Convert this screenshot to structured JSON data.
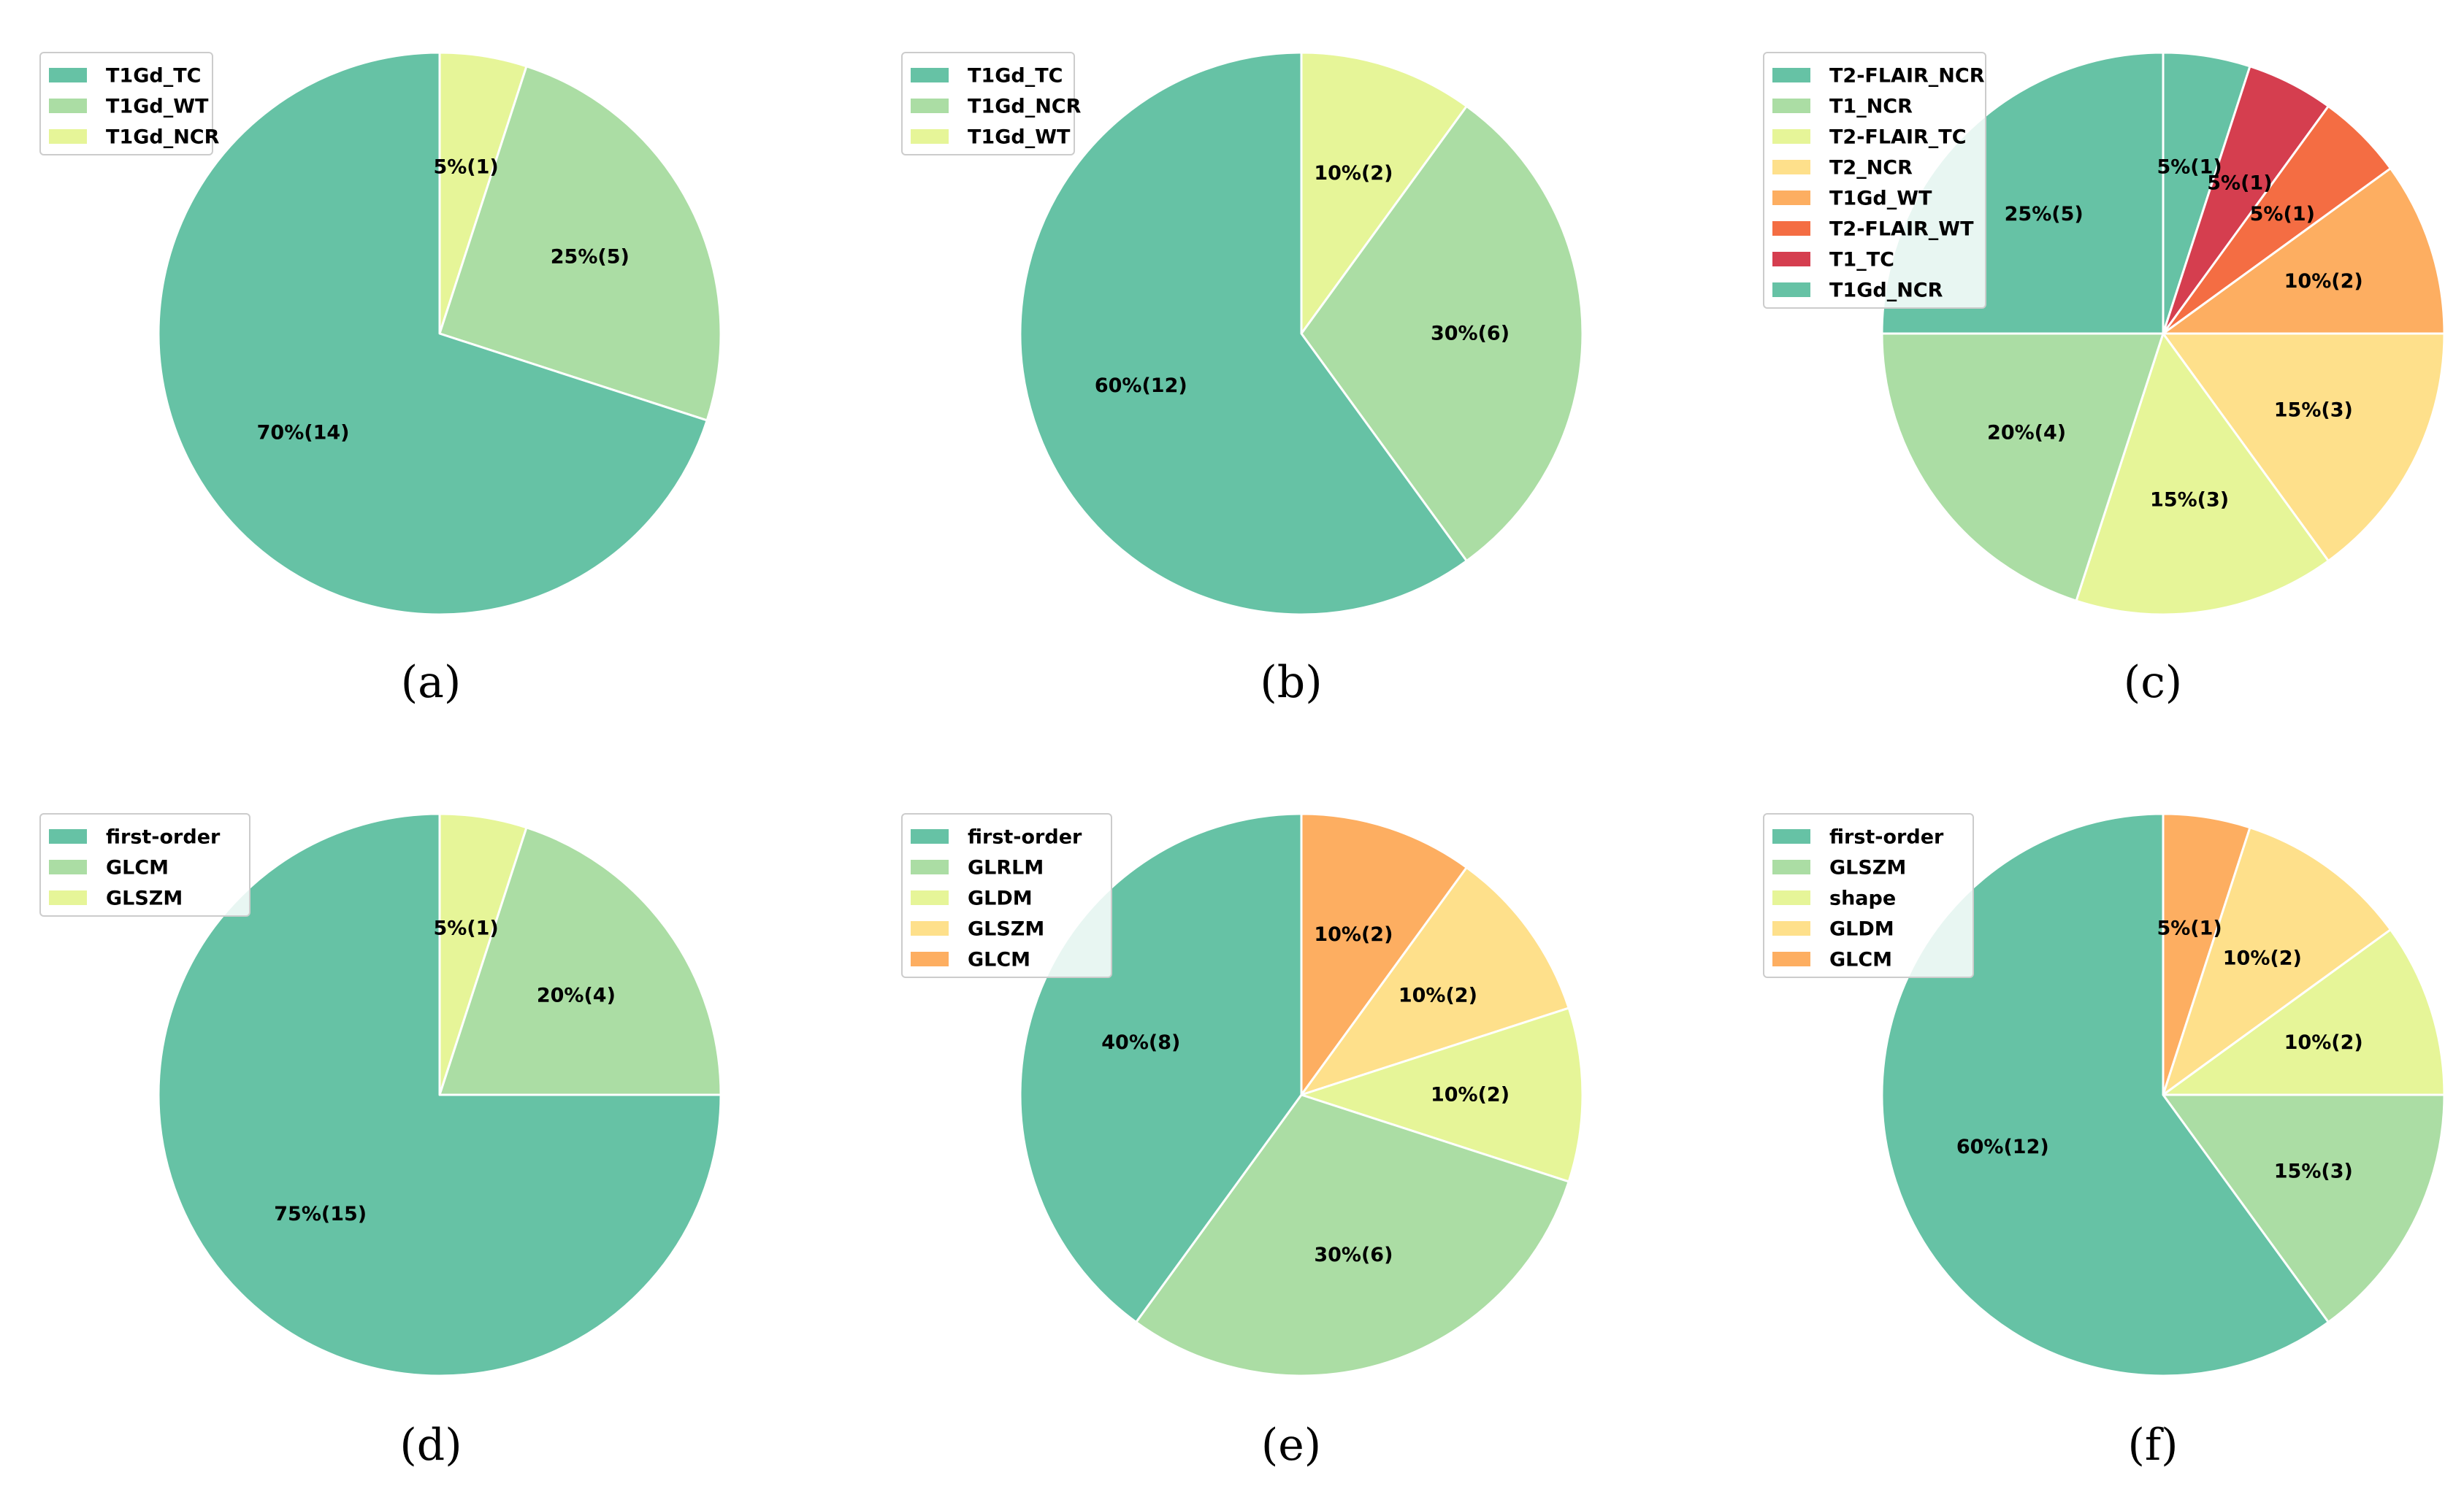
{
  "figure": {
    "background": "#ffffff"
  },
  "chart_data": [
    {
      "type": "pie",
      "caption": "(a)",
      "categories": [
        "T1Gd_NCR",
        "T1Gd_WT",
        "T1Gd_TC"
      ],
      "values": [
        5,
        25,
        70
      ],
      "counts": [
        1,
        5,
        14
      ],
      "labels": [
        "5%(1)",
        "25%(5)",
        "70%(14)"
      ],
      "colors": [
        "#e6f598",
        "#abdda4",
        "#66c2a5"
      ],
      "legend": [
        {
          "label": "T1Gd_TC",
          "color": "#66c2a5"
        },
        {
          "label": "T1Gd_WT",
          "color": "#abdda4"
        },
        {
          "label": "T1Gd_NCR",
          "color": "#e6f598"
        }
      ],
      "start_angle_deg": 90,
      "direction": "clockwise",
      "legend_position": "top-left"
    },
    {
      "type": "pie",
      "caption": "(b)",
      "categories": [
        "T1Gd_WT",
        "T1Gd_NCR",
        "T1Gd_TC"
      ],
      "values": [
        10,
        30,
        60
      ],
      "counts": [
        2,
        6,
        12
      ],
      "labels": [
        "10%(2)",
        "30%(6)",
        "60%(12)"
      ],
      "colors": [
        "#e6f598",
        "#abdda4",
        "#66c2a5"
      ],
      "legend": [
        {
          "label": "T1Gd_TC",
          "color": "#66c2a5"
        },
        {
          "label": "T1Gd_NCR",
          "color": "#abdda4"
        },
        {
          "label": "T1Gd_WT",
          "color": "#e6f598"
        }
      ],
      "start_angle_deg": 90,
      "direction": "clockwise",
      "legend_position": "top-left"
    },
    {
      "type": "pie",
      "caption": "(c)",
      "categories": [
        "T1Gd_NCR",
        "T1_TC",
        "T2-FLAIR_WT",
        "T1Gd_WT",
        "T2_NCR",
        "T2-FLAIR_TC",
        "T1_NCR",
        "T2-FLAIR_NCR"
      ],
      "values": [
        5,
        5,
        5,
        10,
        15,
        15,
        20,
        25
      ],
      "counts": [
        1,
        1,
        1,
        2,
        3,
        3,
        4,
        5
      ],
      "labels": [
        "5%(1)",
        "5%(1)",
        "5%(1)",
        "10%(2)",
        "15%(3)",
        "15%(3)",
        "20%(4)",
        "25%(5)"
      ],
      "colors": [
        "#66c2a5",
        "#d53e4f",
        "#f46d43",
        "#fdae61",
        "#fee08b",
        "#e6f598",
        "#abdda4",
        "#66c2a5"
      ],
      "legend": [
        {
          "label": "T2-FLAIR_NCR",
          "color": "#66c2a5"
        },
        {
          "label": "T1_NCR",
          "color": "#abdda4"
        },
        {
          "label": "T2-FLAIR_TC",
          "color": "#e6f598"
        },
        {
          "label": "T2_NCR",
          "color": "#fee08b"
        },
        {
          "label": "T1Gd_WT",
          "color": "#fdae61"
        },
        {
          "label": "T2-FLAIR_WT",
          "color": "#f46d43"
        },
        {
          "label": "T1_TC",
          "color": "#d53e4f"
        },
        {
          "label": "T1Gd_NCR",
          "color": "#66c2a5"
        }
      ],
      "start_angle_deg": 90,
      "direction": "clockwise",
      "legend_position": "top-left"
    },
    {
      "type": "pie",
      "caption": "(d)",
      "categories": [
        "GLSZM",
        "GLCM",
        "first-order"
      ],
      "values": [
        5,
        20,
        75
      ],
      "counts": [
        1,
        4,
        15
      ],
      "labels": [
        "5%(1)",
        "20%(4)",
        "75%(15)"
      ],
      "colors": [
        "#e6f598",
        "#abdda4",
        "#66c2a5"
      ],
      "legend": [
        {
          "label": "first-order",
          "color": "#66c2a5"
        },
        {
          "label": "GLCM",
          "color": "#abdda4"
        },
        {
          "label": "GLSZM",
          "color": "#e6f598"
        }
      ],
      "start_angle_deg": 90,
      "direction": "clockwise",
      "legend_position": "top-left"
    },
    {
      "type": "pie",
      "caption": "(e)",
      "categories": [
        "GLCM",
        "GLSZM",
        "GLDM",
        "GLRLM",
        "first-order"
      ],
      "values": [
        10,
        10,
        10,
        30,
        40
      ],
      "counts": [
        2,
        2,
        2,
        6,
        8
      ],
      "labels": [
        "10%(2)",
        "10%(2)",
        "10%(2)",
        "30%(6)",
        "40%(8)"
      ],
      "colors": [
        "#fdae61",
        "#fee08b",
        "#e6f598",
        "#abdda4",
        "#66c2a5"
      ],
      "legend": [
        {
          "label": "first-order",
          "color": "#66c2a5"
        },
        {
          "label": "GLRLM",
          "color": "#abdda4"
        },
        {
          "label": "GLDM",
          "color": "#e6f598"
        },
        {
          "label": "GLSZM",
          "color": "#fee08b"
        },
        {
          "label": "GLCM",
          "color": "#fdae61"
        }
      ],
      "start_angle_deg": 90,
      "direction": "clockwise",
      "legend_position": "top-left"
    },
    {
      "type": "pie",
      "caption": "(f)",
      "categories": [
        "GLCM",
        "GLDM",
        "shape",
        "GLSZM",
        "first-order"
      ],
      "values": [
        5,
        10,
        10,
        15,
        60
      ],
      "counts": [
        1,
        2,
        2,
        3,
        12
      ],
      "labels": [
        "5%(1)",
        "10%(2)",
        "10%(2)",
        "15%(3)",
        "60%(12)"
      ],
      "colors": [
        "#fdae61",
        "#fee08b",
        "#e6f598",
        "#abdda4",
        "#66c2a5"
      ],
      "legend": [
        {
          "label": "first-order",
          "color": "#66c2a5"
        },
        {
          "label": "GLSZM",
          "color": "#abdda4"
        },
        {
          "label": "shape",
          "color": "#e6f598"
        },
        {
          "label": "GLDM",
          "color": "#fee08b"
        },
        {
          "label": "GLCM",
          "color": "#fdae61"
        }
      ],
      "start_angle_deg": 90,
      "direction": "clockwise",
      "legend_position": "top-left"
    }
  ]
}
